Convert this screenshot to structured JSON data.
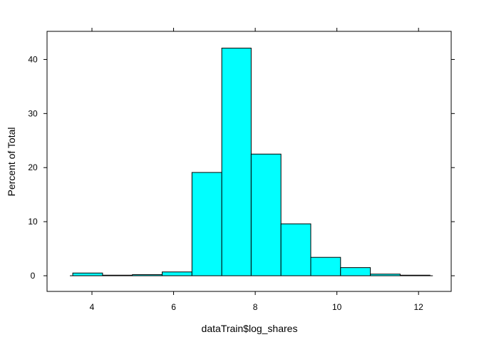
{
  "chart_data": {
    "type": "bar",
    "xlabel": "dataTrain$log_shares",
    "ylabel": "Percent of Total",
    "xlim": [
      2.9,
      12.8
    ],
    "ylim": [
      -2.9,
      45.2
    ],
    "x_ticks": [
      4,
      6,
      8,
      10,
      12
    ],
    "y_ticks": [
      0,
      10,
      20,
      30,
      40
    ],
    "bar_fill": "#00FFFF",
    "bar_stroke": "#000000",
    "bins": [
      {
        "x0": 3.53,
        "x1": 4.26,
        "value": 0.5
      },
      {
        "x0": 4.26,
        "x1": 4.99,
        "value": 0.1
      },
      {
        "x0": 4.99,
        "x1": 5.72,
        "value": 0.2
      },
      {
        "x0": 5.72,
        "x1": 6.45,
        "value": 0.7
      },
      {
        "x0": 6.45,
        "x1": 7.18,
        "value": 19.1
      },
      {
        "x0": 7.18,
        "x1": 7.9,
        "value": 42.1
      },
      {
        "x0": 7.9,
        "x1": 8.63,
        "value": 22.5
      },
      {
        "x0": 8.63,
        "x1": 9.36,
        "value": 9.6
      },
      {
        "x0": 9.36,
        "x1": 10.09,
        "value": 3.4
      },
      {
        "x0": 10.09,
        "x1": 10.82,
        "value": 1.5
      },
      {
        "x0": 10.82,
        "x1": 11.55,
        "value": 0.3
      },
      {
        "x0": 11.55,
        "x1": 12.28,
        "value": 0.1
      }
    ]
  }
}
